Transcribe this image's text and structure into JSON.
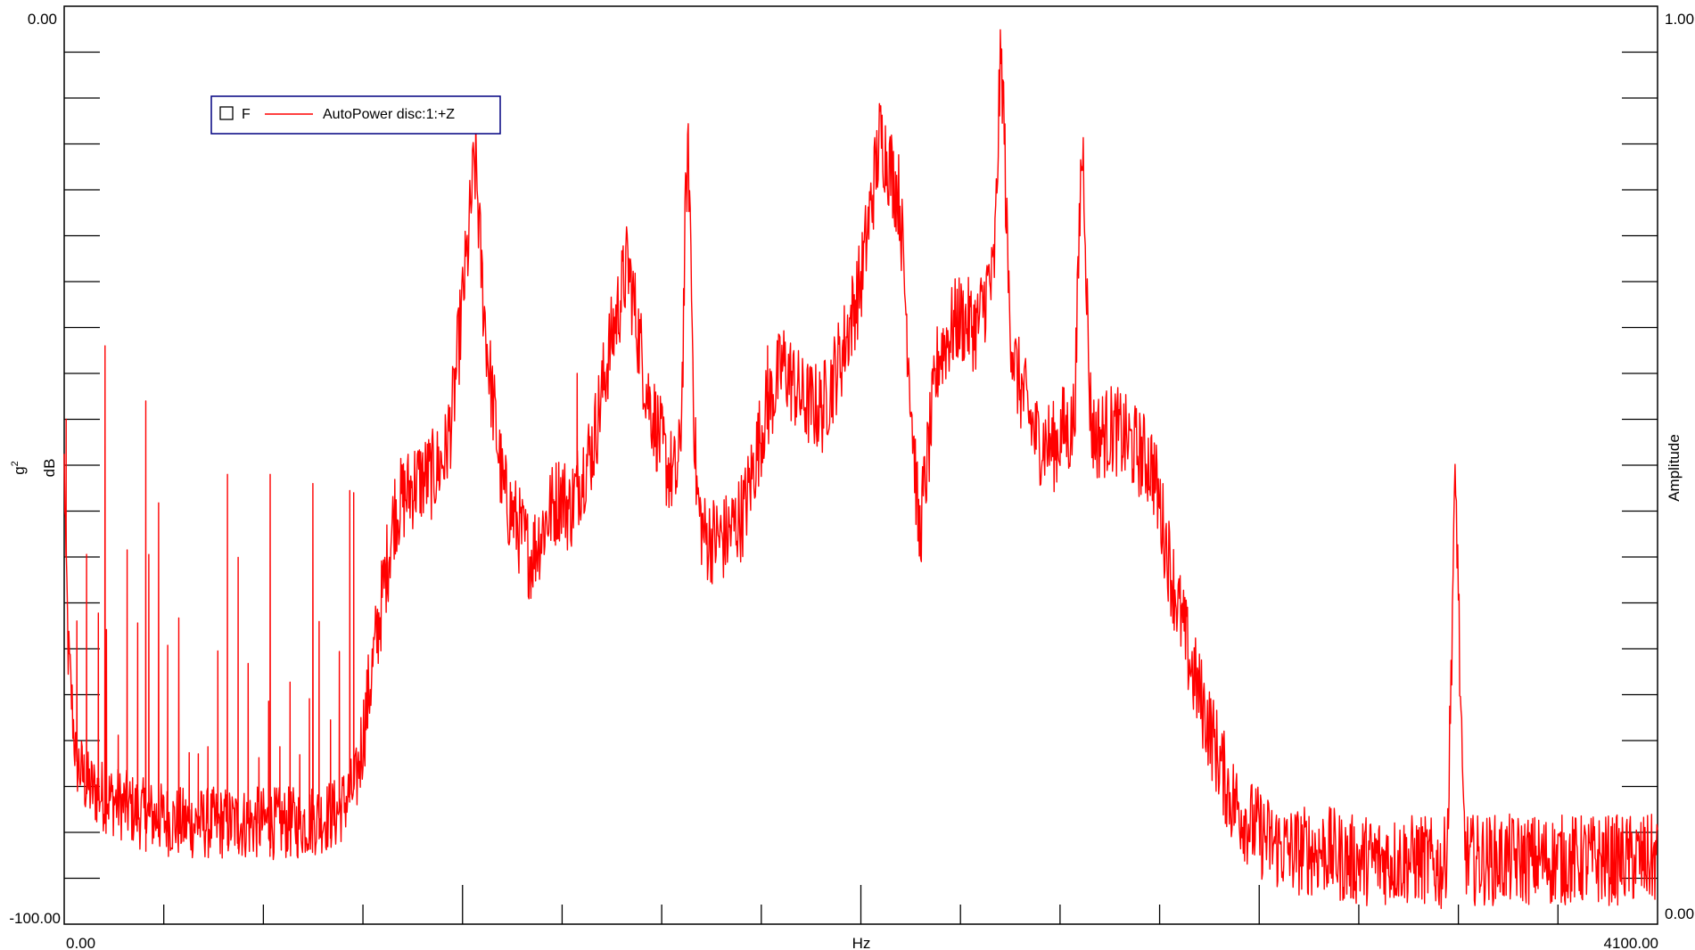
{
  "chart_data": {
    "type": "line",
    "title": "",
    "xlabel": "Hz",
    "ylabel_left_unit": "g",
    "ylabel_left_unit_sup": "2",
    "ylabel_left_scale": "dB",
    "ylabel_right": "Amplitude",
    "xlim": [
      0,
      4100
    ],
    "ylim": [
      -100,
      0
    ],
    "y_right_lim": [
      0,
      1
    ],
    "x_tick_labels": [
      "0.00",
      "4100.00"
    ],
    "y_left_tick_labels": [
      "0.00",
      "-100.00"
    ],
    "y_right_tick_labels": [
      "1.00",
      "0.00"
    ],
    "x_center_label": "Hz",
    "grid": false,
    "legend": {
      "position": "top-left",
      "marker_label": "F",
      "entries": [
        {
          "name": "AutoPower disc:1:+Z",
          "color": "#ff0000"
        }
      ]
    },
    "series": [
      {
        "name": "AutoPower disc:1:+Z",
        "color": "#ff0000",
        "x": [
          0,
          10,
          30,
          60,
          100,
          150,
          200,
          300,
          400,
          500,
          600,
          700,
          750,
          800,
          850,
          900,
          950,
          980,
          1000,
          1030,
          1060,
          1090,
          1100,
          1130,
          1160,
          1200,
          1250,
          1280,
          1300,
          1330,
          1360,
          1400,
          1450,
          1500,
          1550,
          1580,
          1600,
          1630,
          1650,
          1700,
          1750,
          1800,
          1850,
          1900,
          1950,
          2000,
          2050,
          2100,
          2150,
          2200,
          2250,
          2300,
          2350,
          2380,
          2400,
          2420,
          2450,
          2500,
          2550,
          2570,
          2600,
          2630,
          2650,
          2700,
          2750,
          2800,
          2850,
          2900,
          2950,
          3000,
          3050,
          3100,
          3150,
          3200,
          3250,
          3300,
          3350,
          3400,
          3450,
          3500,
          3550,
          3600,
          3650,
          3700,
          3750,
          3800,
          3850,
          3900,
          3950,
          4000,
          4050,
          4100
        ],
        "values": [
          -50,
          -70,
          -82,
          -85,
          -86,
          -87,
          -88,
          -89,
          -89,
          -89,
          -89,
          -88,
          -85,
          -70,
          -55,
          -52,
          -51,
          -49,
          -44,
          -30,
          -23,
          -38,
          -42,
          -53,
          -56,
          -60,
          -55,
          -53,
          -55,
          -51,
          -48,
          -38,
          -28,
          -42,
          -50,
          -52,
          -53,
          -55,
          -58,
          -58,
          -55,
          -45,
          -39,
          -43,
          -44,
          -38,
          -30,
          -14,
          -21,
          -58,
          -38,
          -34,
          -35,
          -30,
          -36,
          -31,
          -40,
          -47,
          -48,
          -46,
          -47,
          -47,
          -47,
          -46,
          -48,
          -50,
          -62,
          -72,
          -79,
          -86,
          -89,
          -91,
          -92,
          -92,
          -92,
          -93,
          -93,
          -93,
          -93,
          -93,
          -94,
          -93,
          -93,
          -93,
          -93,
          -93,
          -93,
          -93,
          -93,
          -93,
          -93,
          -93
        ],
        "peaks": [
          {
            "x": 1055,
            "y": -18
          },
          {
            "x": 1605,
            "y": -17
          },
          {
            "x": 2410,
            "y": -7
          },
          {
            "x": 2620,
            "y": -16
          },
          {
            "x": 3580,
            "y": -54
          }
        ],
        "spikes_low_freq": [
          {
            "x": 5,
            "y": -45
          },
          {
            "x": 105,
            "y": -37
          },
          {
            "x": 210,
            "y": -43
          },
          {
            "x": 420,
            "y": -51
          },
          {
            "x": 530,
            "y": -51
          },
          {
            "x": 640,
            "y": -52
          },
          {
            "x": 745,
            "y": -53
          },
          {
            "x": 1320,
            "y": -40
          },
          {
            "x": 1810,
            "y": -37
          }
        ]
      }
    ]
  }
}
